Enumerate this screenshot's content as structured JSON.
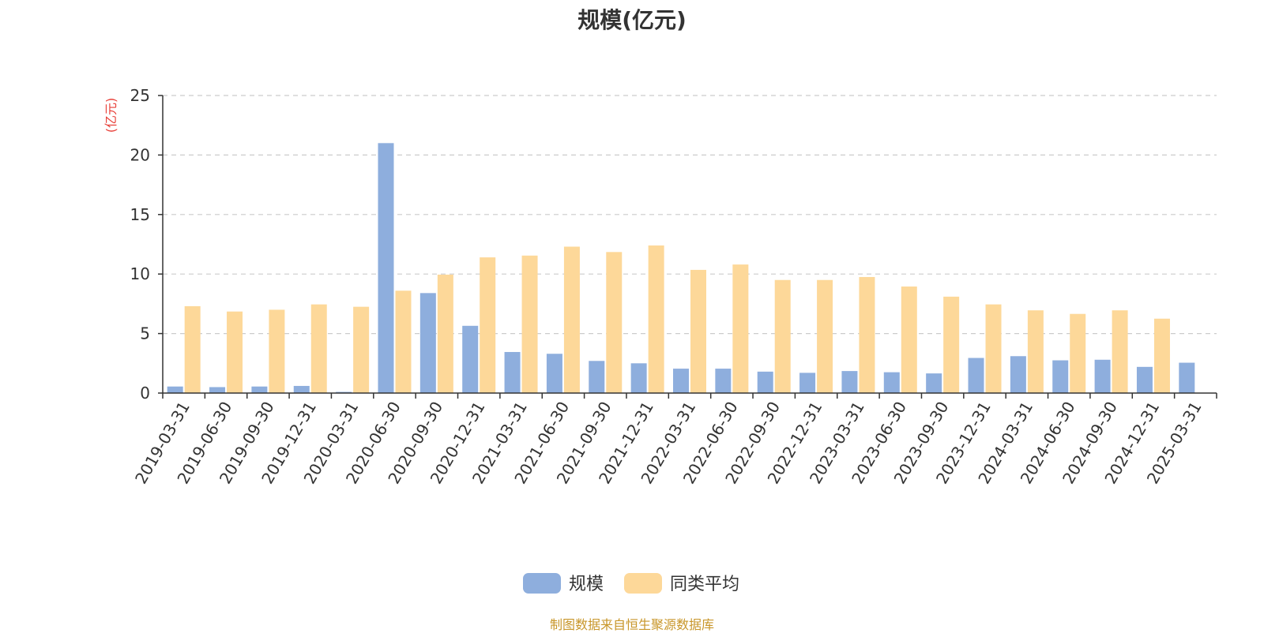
{
  "chart_data": {
    "type": "bar",
    "title": "规模(亿元)",
    "ylabel": "(亿元)",
    "xlabel": "",
    "ylim": [
      0,
      25
    ],
    "yticks": [
      "0",
      "5",
      "10",
      "15",
      "20",
      "25"
    ],
    "grid": "horizontal dashed",
    "legend_position": "bottom",
    "categories": [
      "2019-03-31",
      "2019-06-30",
      "2019-09-30",
      "2019-12-31",
      "2020-03-31",
      "2020-06-30",
      "2020-09-30",
      "2020-12-31",
      "2021-03-31",
      "2021-06-30",
      "2021-09-30",
      "2021-12-31",
      "2022-03-31",
      "2022-06-30",
      "2022-09-30",
      "2022-12-31",
      "2023-03-31",
      "2023-06-30",
      "2023-09-30",
      "2023-12-31",
      "2024-03-31",
      "2024-06-30",
      "2024-09-30",
      "2024-12-31",
      "2025-03-31"
    ],
    "series": [
      {
        "name": "规模",
        "color": "#8eaedd",
        "values": [
          0.55,
          0.5,
          0.55,
          0.6,
          0.1,
          21.0,
          8.4,
          5.65,
          3.45,
          3.3,
          2.7,
          2.5,
          2.05,
          2.05,
          1.8,
          1.7,
          1.85,
          1.75,
          1.65,
          2.95,
          3.1,
          2.75,
          2.8,
          2.2,
          2.55
        ]
      },
      {
        "name": "同类平均",
        "color": "#fdd899",
        "values": [
          7.3,
          6.85,
          7.0,
          7.45,
          7.25,
          8.6,
          9.95,
          11.4,
          11.55,
          12.3,
          11.85,
          12.4,
          10.35,
          10.8,
          9.5,
          9.5,
          9.75,
          8.95,
          8.1,
          7.45,
          6.95,
          6.65,
          6.95,
          6.25,
          null
        ]
      }
    ]
  },
  "source_note": "制图数据来自恒生聚源数据库",
  "colors": {
    "axis": "#333333",
    "grid": "#cccccc",
    "ylabel": "#e8413a",
    "source": "#c8962a"
  }
}
